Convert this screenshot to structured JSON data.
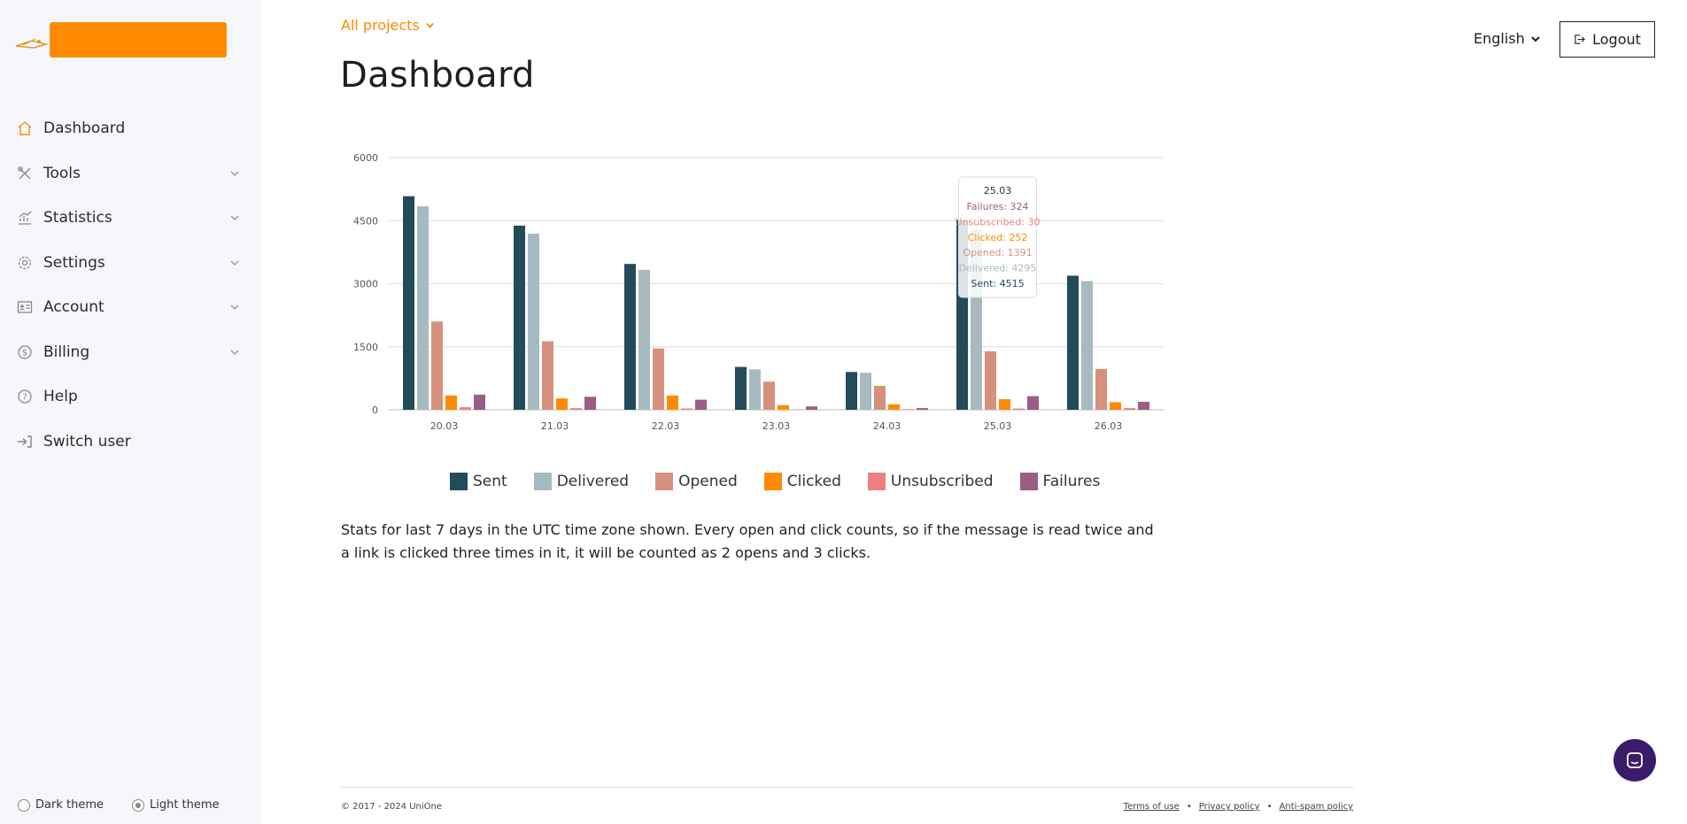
{
  "sidebar": {
    "items": [
      {
        "label": "Dashboard",
        "icon": "home-icon",
        "active": true,
        "has_children": false
      },
      {
        "label": "Tools",
        "icon": "tools-icon",
        "has_children": true
      },
      {
        "label": "Statistics",
        "icon": "chart-icon",
        "has_children": true
      },
      {
        "label": "Settings",
        "icon": "gear-icon",
        "has_children": true
      },
      {
        "label": "Account",
        "icon": "id-card-icon",
        "has_children": true
      },
      {
        "label": "Billing",
        "icon": "dollar-icon",
        "has_children": true
      },
      {
        "label": "Help",
        "icon": "question-icon",
        "has_children": false
      },
      {
        "label": "Switch user",
        "icon": "switch-user-icon",
        "has_children": false
      }
    ],
    "theme": {
      "dark_label": "Dark theme",
      "light_label": "Light theme",
      "selected": "light"
    }
  },
  "header": {
    "projects_label": "All projects",
    "title": "Dashboard",
    "language": "English",
    "logout_label": "Logout"
  },
  "colors": {
    "accent": "#ff8a00",
    "sent": "#234b5a",
    "delivered": "#a6babf",
    "opened": "#d6917c",
    "clicked": "#ff8a00",
    "unsubscribed": "#ec8080",
    "failures": "#9b5c86"
  },
  "chart_data": {
    "type": "bar",
    "categories": [
      "20.03",
      "21.03",
      "22.03",
      "23.03",
      "24.03",
      "25.03",
      "26.03"
    ],
    "ylim": [
      0,
      6000
    ],
    "yticks": [
      "0",
      "1500",
      "3000",
      "4500",
      "6000"
    ],
    "series": [
      {
        "name": "Sent",
        "color": "#234b5a",
        "values": [
          5080,
          4380,
          3470,
          1020,
          900,
          4515,
          3190
        ]
      },
      {
        "name": "Delivered",
        "color": "#a6babf",
        "values": [
          4840,
          4190,
          3330,
          960,
          880,
          4295,
          3060
        ]
      },
      {
        "name": "Opened",
        "color": "#d6917c",
        "values": [
          2100,
          1630,
          1460,
          670,
          570,
          1391,
          970
        ]
      },
      {
        "name": "Clicked",
        "color": "#ff8a00",
        "values": [
          340,
          270,
          340,
          110,
          130,
          252,
          180
        ]
      },
      {
        "name": "Unsubscribed",
        "color": "#ec8080",
        "values": [
          60,
          40,
          30,
          10,
          15,
          30,
          40
        ]
      },
      {
        "name": "Failures",
        "color": "#9b5c86",
        "values": [
          360,
          310,
          240,
          80,
          40,
          324,
          190
        ]
      }
    ],
    "tooltip": {
      "title": "25.03",
      "lines": [
        {
          "text": "Failures: 324",
          "color": "#9b5c86"
        },
        {
          "text": "Unsubscribed: 30",
          "color": "#ec8080"
        },
        {
          "text": "Clicked: 252",
          "color": "#ff8a00"
        },
        {
          "text": "Opened: 1391",
          "color": "#d6917c"
        },
        {
          "text": "Delivered: 4295",
          "color": "#a6babf"
        },
        {
          "text": "Sent: 4515",
          "color": "#234b5a"
        }
      ]
    },
    "legend_placement": "bottom",
    "grid": true
  },
  "description": "Stats for last 7 days in the UTC time zone shown. Every open and click counts, so if the message is read twice and a link is clicked three times in it, it will be counted as 2 opens and 3 clicks.",
  "footer": {
    "copyright": "© 2017 - 2024 UniOne",
    "links": [
      "Terms of use",
      "Privacy policy",
      "Anti-spam policy"
    ]
  }
}
